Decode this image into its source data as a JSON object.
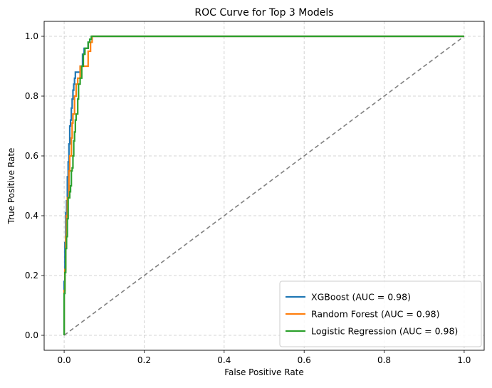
{
  "chart_data": {
    "type": "line",
    "title": "ROC Curve for Top 3 Models",
    "xlabel": "False Positive Rate",
    "ylabel": "True Positive Rate",
    "xlim": [
      -0.05,
      1.05
    ],
    "ylim": [
      -0.05,
      1.05
    ],
    "xticks": [
      0.0,
      0.2,
      0.4,
      0.6,
      0.8,
      1.0
    ],
    "yticks": [
      0.0,
      0.2,
      0.4,
      0.6,
      0.8,
      1.0
    ],
    "xtick_labels": [
      "0.0",
      "0.2",
      "0.4",
      "0.6",
      "0.8",
      "1.0"
    ],
    "ytick_labels": [
      "0.0",
      "0.2",
      "0.4",
      "0.6",
      "0.8",
      "1.0"
    ],
    "grid": true,
    "legend_position": "bottom-right",
    "reference_line": {
      "x": [
        0,
        1
      ],
      "y": [
        0,
        1
      ],
      "color": "#808080",
      "style": "dashed"
    },
    "series": [
      {
        "name": "XGBoost (AUC = 0.98)",
        "color": "#1f77b4",
        "x": [
          0,
          0,
          0.002,
          0.002,
          0.004,
          0.004,
          0.006,
          0.006,
          0.008,
          0.008,
          0.01,
          0.01,
          0.012,
          0.012,
          0.014,
          0.014,
          0.016,
          0.016,
          0.018,
          0.018,
          0.02,
          0.02,
          0.022,
          0.022,
          0.024,
          0.024,
          0.026,
          0.026,
          0.028,
          0.028,
          0.03,
          0.03,
          0.034,
          0.034,
          0.04,
          0.04,
          0.046,
          0.046,
          0.05,
          0.05,
          0.054,
          0.054,
          0.06,
          0.06,
          0.064,
          0.064,
          0.07,
          0.07,
          1.0
        ],
        "y": [
          0,
          0.18,
          0.18,
          0.31,
          0.31,
          0.41,
          0.41,
          0.45,
          0.45,
          0.53,
          0.53,
          0.58,
          0.58,
          0.64,
          0.64,
          0.7,
          0.7,
          0.72,
          0.72,
          0.76,
          0.76,
          0.79,
          0.79,
          0.82,
          0.82,
          0.84,
          0.84,
          0.86,
          0.86,
          0.88,
          0.88,
          0.88,
          0.88,
          0.88,
          0.88,
          0.9,
          0.9,
          0.94,
          0.94,
          0.96,
          0.96,
          0.96,
          0.96,
          0.98,
          0.98,
          0.99,
          0.99,
          1.0,
          1.0
        ]
      },
      {
        "name": "Random Forest (AUC = 0.98)",
        "color": "#ff7f0e",
        "x": [
          0,
          0,
          0.002,
          0.002,
          0.004,
          0.004,
          0.006,
          0.006,
          0.008,
          0.008,
          0.012,
          0.012,
          0.014,
          0.014,
          0.018,
          0.018,
          0.02,
          0.02,
          0.022,
          0.022,
          0.026,
          0.026,
          0.03,
          0.03,
          0.034,
          0.034,
          0.04,
          0.04,
          0.046,
          0.046,
          0.05,
          0.05,
          0.054,
          0.054,
          0.06,
          0.06,
          0.066,
          0.066,
          0.07,
          0.07,
          1.0
        ],
        "y": [
          0,
          0.15,
          0.15,
          0.22,
          0.22,
          0.33,
          0.33,
          0.4,
          0.4,
          0.46,
          0.46,
          0.55,
          0.55,
          0.6,
          0.6,
          0.66,
          0.66,
          0.71,
          0.71,
          0.74,
          0.74,
          0.8,
          0.8,
          0.84,
          0.84,
          0.86,
          0.86,
          0.9,
          0.9,
          0.9,
          0.9,
          0.9,
          0.9,
          0.9,
          0.9,
          0.95,
          0.95,
          0.98,
          0.98,
          1.0,
          1.0
        ]
      },
      {
        "name": "Logistic Regression (AUC = 0.98)",
        "color": "#2ca02c",
        "x": [
          0,
          0,
          0.002,
          0.002,
          0.004,
          0.004,
          0.006,
          0.006,
          0.008,
          0.008,
          0.01,
          0.01,
          0.014,
          0.014,
          0.016,
          0.016,
          0.018,
          0.018,
          0.02,
          0.02,
          0.022,
          0.022,
          0.024,
          0.024,
          0.026,
          0.026,
          0.028,
          0.028,
          0.03,
          0.03,
          0.034,
          0.034,
          0.036,
          0.036,
          0.04,
          0.04,
          0.044,
          0.044,
          0.048,
          0.048,
          0.052,
          0.052,
          0.056,
          0.056,
          0.06,
          0.06,
          0.064,
          0.064,
          0.068,
          0.068,
          1.0
        ],
        "y": [
          0,
          0.14,
          0.14,
          0.21,
          0.21,
          0.29,
          0.29,
          0.33,
          0.33,
          0.39,
          0.39,
          0.46,
          0.46,
          0.48,
          0.48,
          0.5,
          0.5,
          0.55,
          0.55,
          0.56,
          0.56,
          0.6,
          0.6,
          0.65,
          0.65,
          0.68,
          0.68,
          0.72,
          0.72,
          0.74,
          0.74,
          0.79,
          0.79,
          0.84,
          0.84,
          0.86,
          0.86,
          0.9,
          0.9,
          0.94,
          0.94,
          0.96,
          0.96,
          0.96,
          0.96,
          0.98,
          0.98,
          0.99,
          0.99,
          1.0,
          1.0
        ]
      }
    ]
  }
}
